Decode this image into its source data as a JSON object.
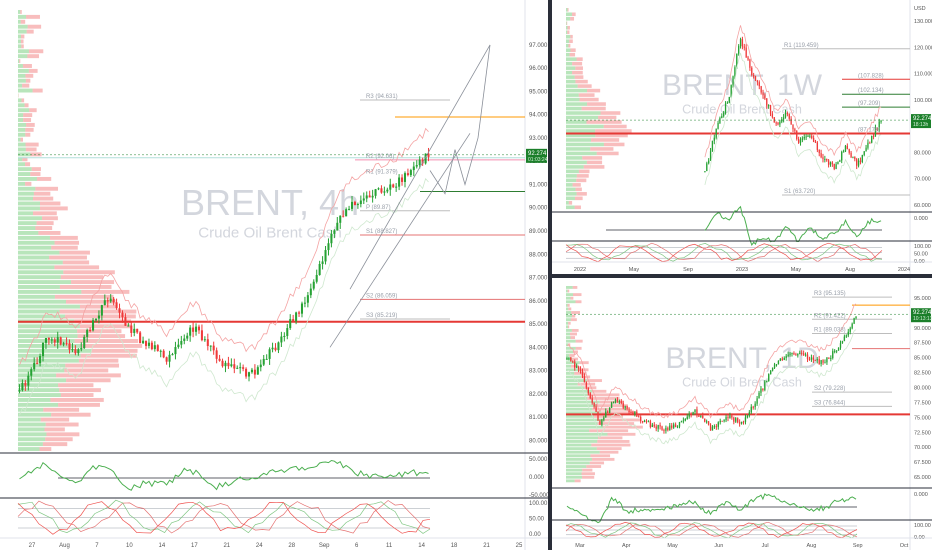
{
  "colors": {
    "up": "#26a234",
    "down": "#ef3a3a",
    "profile_up": "#7ecf84",
    "profile_down": "#f27c7c",
    "osc_line": "#4caf50",
    "osc_down": "#f26868",
    "axis_text": "#555555",
    "price_tag": "#1b7f2a",
    "watermark": "#c8ccd4",
    "pivot": "#c0c0c0",
    "resistance_orange": "#ff9800",
    "poc_red": "#e53935",
    "support_green": "#2e7d32"
  },
  "panels": [
    {
      "id": "4h",
      "watermark_symbol": "BRENT, 4h",
      "watermark_name": "Crude Oil Brent Cash",
      "price_label": "92.274",
      "price_timer": "01:03:24",
      "chart_data": {
        "type": "candlestick",
        "y_ticks": [
          "97.000",
          "96.000",
          "95.000",
          "94.000",
          "93.000",
          "92.000",
          "91.000",
          "90.000",
          "89.000",
          "88.000",
          "87.000",
          "86.000",
          "85.000",
          "84.000",
          "83.000",
          "82.000",
          "81.000",
          "80.000"
        ],
        "ylim": [
          79.5,
          98.5
        ],
        "x_ticks": [
          "27",
          "Aug",
          "7",
          "10",
          "14",
          "17",
          "21",
          "24",
          "28",
          "Sep",
          "6",
          "11",
          "14",
          "18",
          "21",
          "25"
        ],
        "pivot_labels": [
          "R3 (94.631)",
          "R2 (92.06)",
          "R1 (91.379)",
          "P (89.87)",
          "S1 (88.827)",
          "S2 (86.059)",
          "S3 (85.219)"
        ],
        "osc_ticks": [
          "50.000",
          "0.000",
          "-50.000"
        ],
        "stoch_ticks": [
          "100.00",
          "50.00",
          "0.00"
        ],
        "price_close": 92.274,
        "projection_targets": [
          97.0,
          91.0
        ]
      }
    },
    {
      "id": "1w",
      "watermark_symbol": "BRENT, 1W",
      "watermark_name": "Crude Oil Brent Cash",
      "price_label": "92.274",
      "price_timer": "18:13h",
      "axis_unit": "USD",
      "chart_data": {
        "type": "candlestick",
        "y_ticks": [
          "130.000",
          "120.000",
          "110.000",
          "100.000",
          "90.000",
          "80.000",
          "70.000",
          "60.000"
        ],
        "ylim": [
          58,
          135
        ],
        "x_ticks": [
          "2022",
          "May",
          "Sep",
          "2023",
          "May",
          "Aug",
          "2024"
        ],
        "pivot_labels": [
          "R1 (119.459)",
          "(107.828)",
          "(102.134)",
          "(97.209)",
          "(87.178)",
          "S1 (63.720)"
        ],
        "osc_ticks": [
          "0.000"
        ],
        "stoch_ticks": [
          "100.00",
          "50.00",
          "0.00"
        ],
        "price_close": 92.274
      }
    },
    {
      "id": "1d",
      "watermark_symbol": "BRENT, 1D",
      "watermark_name": "Crude Oil Brent Cash",
      "price_label": "92.274",
      "price_timer": "10:13:13",
      "chart_data": {
        "type": "candlestick",
        "y_ticks": [
          "95.000",
          "92.500",
          "90.000",
          "87.500",
          "85.000",
          "82.500",
          "80.000",
          "77.500",
          "75.000",
          "72.500",
          "70.000",
          "67.500",
          "65.000"
        ],
        "ylim": [
          64,
          97
        ],
        "x_ticks": [
          "Mar",
          "Apr",
          "May",
          "Jun",
          "Jul",
          "Aug",
          "Sep",
          "Oct"
        ],
        "pivot_labels": [
          "R3 (95.135)",
          "R2 (91.422)",
          "R1 (89.038)",
          "S2 (79.228)",
          "S3 (76.844)"
        ],
        "osc_ticks": [
          "0.000"
        ],
        "stoch_ticks": [
          "100.00",
          "0.00"
        ],
        "price_close": 92.274
      }
    }
  ]
}
